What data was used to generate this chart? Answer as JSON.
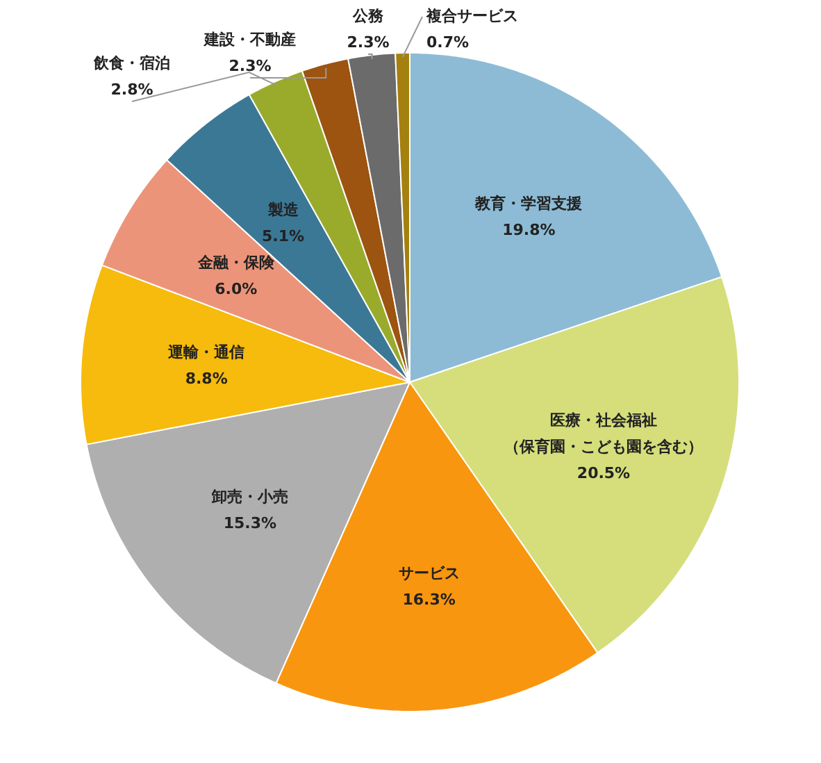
{
  "chart_data": {
    "type": "pie",
    "categories": [
      "教育・学習支援",
      "医療・社会福祉（保育園・こども園を含む）",
      "サービス",
      "卸売・小売",
      "運輸・通信",
      "金融・保険",
      "製造",
      "飲食・宿泊",
      "建設・不動産",
      "公務",
      "複合サービス"
    ],
    "values": [
      19.8,
      20.5,
      16.3,
      15.3,
      8.8,
      6.0,
      5.1,
      2.8,
      2.3,
      2.3,
      0.7
    ],
    "value_labels": [
      "19.8%",
      "20.5%",
      "16.3%",
      "15.3%",
      "8.8%",
      "6.0%",
      "5.1%",
      "2.8%",
      "2.3%",
      "2.3%",
      "0.7%"
    ],
    "colors": [
      "#8dbbd5",
      "#d5de7b",
      "#f9960f",
      "#afafaf",
      "#f6bb0c",
      "#ec9479",
      "#3b7896",
      "#9aab2c",
      "#9c5410",
      "#6b6b6b",
      "#a4800f"
    ]
  }
}
